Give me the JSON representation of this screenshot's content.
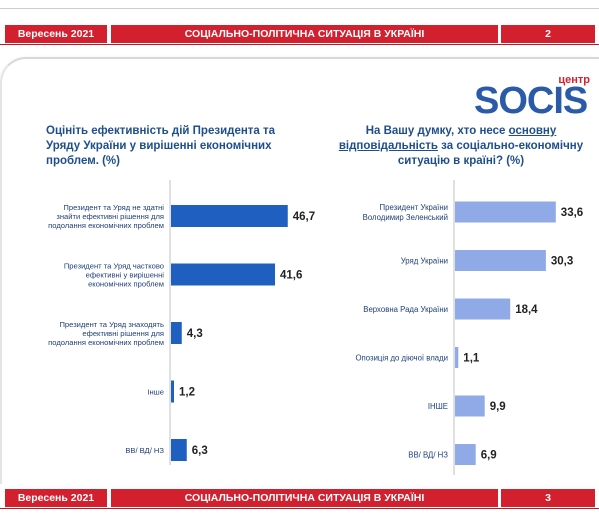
{
  "header": {
    "date": "Вересень 2021",
    "title": "СОЦІАЛЬНО-ПОЛІТИЧНА СИТУАЦІЯ В УКРАЇНІ",
    "page": "2"
  },
  "footer": {
    "date": "Вересень 2021",
    "title": "СОЦІАЛЬНО-ПОЛІТИЧНА СИТУАЦІЯ В УКРАЇНІ",
    "page": "3"
  },
  "logo": {
    "word": "SOCIS",
    "tag": "центр"
  },
  "colors": {
    "band": "#d3202f",
    "title_text": "#1f4e8c",
    "left_bars": "#1f5fc0",
    "right_bars": "#8faae6",
    "logo": "#2a5aa8"
  },
  "chart_data": [
    {
      "type": "bar",
      "orientation": "horizontal",
      "title": "Оцініть ефективність дій Президента та Уряду України у вирішенні економічних проблем. (%)",
      "categories": [
        "Президент та Уряд не здатні знайти ефективні рішення для подолання економічних проблем",
        "Президент та Уряд частково ефективні у вирішенні економічних проблем",
        "Президент та Уряд знаходять ефективні рішення для подолання економічних проблем",
        "Інше",
        "ВВ/ ВД/ НЗ"
      ],
      "values": [
        46.7,
        41.6,
        4.3,
        1.2,
        6.3
      ],
      "value_labels": [
        "46,7",
        "41,6",
        "4,3",
        "1,2",
        "6,3"
      ],
      "xlim": [
        0,
        60
      ]
    },
    {
      "type": "bar",
      "orientation": "horizontal",
      "title_parts": [
        "На Вашу думку, хто несе ",
        "основну відповідальність",
        " за соціально-економічну ситуацію в країні? (%)"
      ],
      "categories": [
        "Президент України Володимир Зеленський",
        "Уряд України",
        "Верховна Рада України",
        "Опозиція до діючої влади",
        "ІНШЕ",
        "ВВ/ ВД/ НЗ"
      ],
      "values": [
        33.6,
        30.3,
        18.4,
        1.1,
        9.9,
        6.9
      ],
      "value_labels": [
        "33,6",
        "30,3",
        "18,4",
        "1,1",
        "9,9",
        "6,9"
      ],
      "xlim": [
        0,
        50
      ]
    }
  ]
}
